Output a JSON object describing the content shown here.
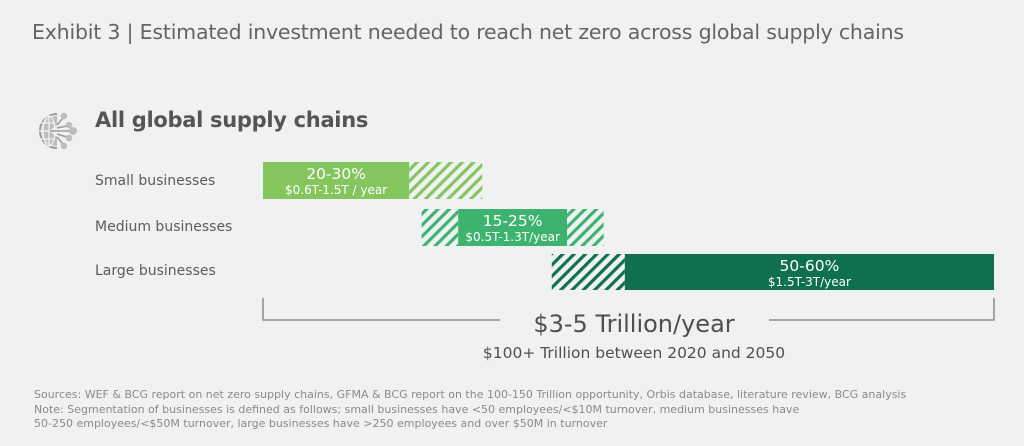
{
  "header": {
    "title": "Exhibit 3 | Estimated investment needed to reach net zero across global supply chains"
  },
  "section": {
    "icon": "globe-network-icon",
    "title": "All global supply chains"
  },
  "colors": {
    "small": "#84c55e",
    "medium": "#3eb370",
    "large": "#0f7050",
    "bracket": "#8c8c8c",
    "background": "#f0f1f3"
  },
  "chart_data": {
    "type": "bar",
    "orientation": "horizontal-range",
    "title": "All global supply chains",
    "xlabel": "",
    "ylabel": "",
    "xlim": [
      0,
      100
    ],
    "grid": false,
    "categories": [
      "Small businesses",
      "Medium businesses",
      "Large businesses"
    ],
    "series": [
      {
        "name": "Small businesses",
        "share_label": "20-30%",
        "value_label": "$0.6T-1.5T / year",
        "share_range_pct": [
          20,
          30
        ],
        "segments": [
          {
            "type": "solid",
            "start": 0,
            "end": 20
          },
          {
            "type": "hatched",
            "start": 20,
            "end": 30
          }
        ]
      },
      {
        "name": "Medium businesses",
        "share_label": "15-25%",
        "value_label": "$0.5T-1.3T/year",
        "share_range_pct": [
          15,
          25
        ],
        "segments": [
          {
            "type": "hatched",
            "start": 21.7,
            "end": 26.7
          },
          {
            "type": "solid",
            "start": 26.7,
            "end": 41.6
          },
          {
            "type": "hatched",
            "start": 41.6,
            "end": 46.6
          }
        ]
      },
      {
        "name": "Large businesses",
        "share_label": "50-60%",
        "value_label": "$1.5T-3T/year",
        "share_range_pct": [
          50,
          60
        ],
        "segments": [
          {
            "type": "hatched",
            "start": 39.5,
            "end": 49.5
          },
          {
            "type": "solid",
            "start": 49.5,
            "end": 100
          }
        ]
      }
    ],
    "annotations": {
      "total_annual": "$3-5 Trillion/year",
      "total_cumulative": "$100+ Trillion between 2020 and 2050"
    }
  },
  "notes": [
    "Sources: WEF & BCG report on net zero supply chains, GFMA & BCG report on the 100-150 Trillion opportunity, Orbis database, literature review, BCG analysis",
    "Note: Segmentation of businesses is defined as follows; small businesses have <50 employees/<$10M turnover, medium businesses have",
    "50-250 employees/<$50M turnover, large businesses have >250 employees and over $50M in turnover"
  ]
}
